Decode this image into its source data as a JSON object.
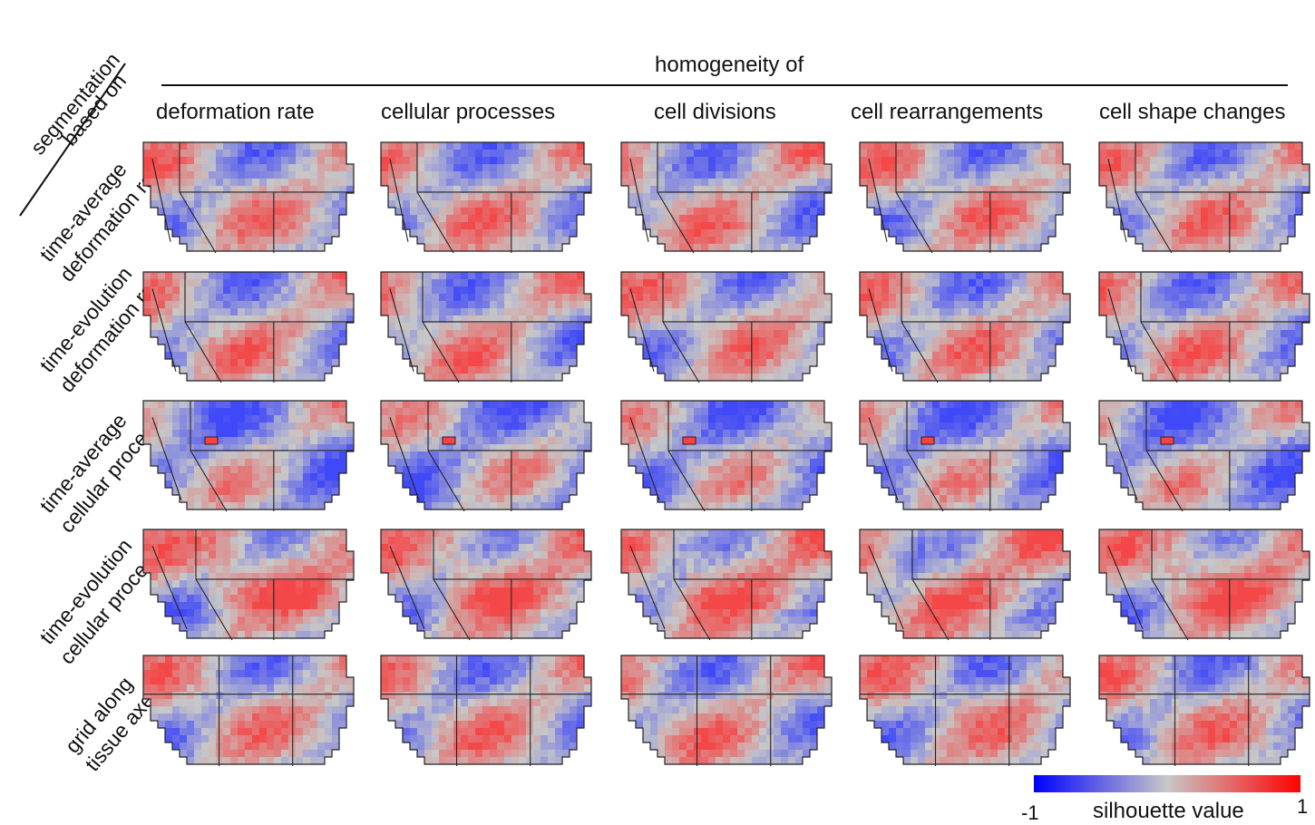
{
  "header": {
    "corner_top_line1": "segmentation",
    "corner_top_line2": "based on",
    "homogeneity_label": "homogeneity of"
  },
  "columns": [
    "deformation rate",
    "cellular processes",
    "cell divisions",
    "cell rearrangements",
    "cell shape changes"
  ],
  "rows": [
    {
      "line1": "time-average",
      "line2": "deformation rate"
    },
    {
      "line1": "time-evolution",
      "line2": "deformation rate"
    },
    {
      "line1": "time-average",
      "line2": "cellular processes"
    },
    {
      "line1": "time-evolution",
      "line2": "cellular processes"
    },
    {
      "line1": "grid along",
      "line2": "tissue axes"
    }
  ],
  "colorbar": {
    "min_label": "-1",
    "max_label": "1",
    "title": "silhouette value",
    "colors": [
      "#0000ff",
      "#c8c8c8",
      "#ff0000"
    ]
  }
}
